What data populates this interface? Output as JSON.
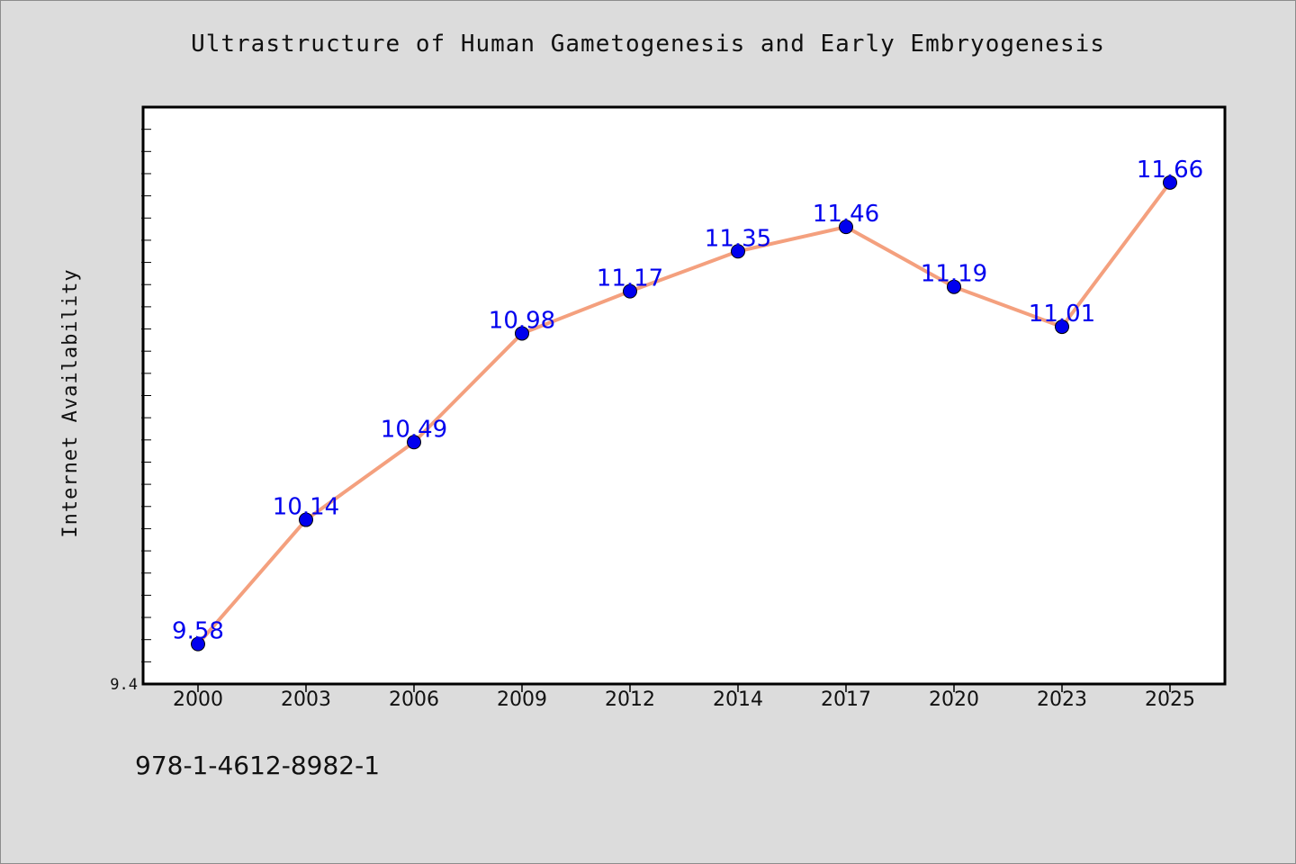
{
  "chart_data": {
    "type": "line",
    "title": "Ultrastructure of Human Gametogenesis and Early Embryogenesis",
    "xlabel": "",
    "ylabel": "Internet Availability",
    "categories": [
      "2000",
      "2003",
      "2006",
      "2009",
      "2012",
      "2014",
      "2017",
      "2020",
      "2023",
      "2025"
    ],
    "series": [
      {
        "values": [
          9.58,
          10.14,
          10.49,
          10.98,
          11.17,
          11.35,
          11.46,
          11.19,
          11.01,
          11.66
        ]
      }
    ],
    "y_tick_labels": [
      "9.4"
    ],
    "ylim": [
      9.4,
      12.0
    ],
    "grid": false,
    "legend": "none",
    "colors": {
      "line": "#f4a07e",
      "marker": "#0000ee",
      "data_label": "#0000ee"
    }
  },
  "footer_text": "978-1-4612-8982-1"
}
